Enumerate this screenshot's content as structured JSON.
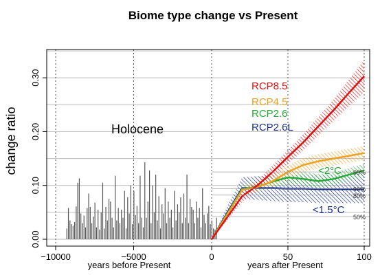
{
  "chart_data": {
    "type": "line",
    "title": "Biome type change vs Present",
    "ylabel": "change ratio",
    "xlabel_left": "years before Present",
    "xlabel_right": "years after Present",
    "holocene_label": "Holocene",
    "ylim": [
      0.0,
      0.35
    ],
    "yticks": [
      0.0,
      0.1,
      0.2,
      0.3
    ],
    "ytick_labels": [
      "0.00",
      "0.10",
      "0.20",
      "0.30"
    ],
    "holocene_xlim": [
      -10500,
      0
    ],
    "holocene_xticks": [
      -10000,
      -5000,
      0
    ],
    "holocene_xtick_labels": [
      "−10000",
      "−5000",
      "0"
    ],
    "future_xlim": [
      0,
      102
    ],
    "future_xticks": [
      50,
      100
    ],
    "future_xtick_labels": [
      "50",
      "100"
    ],
    "grid": true,
    "reference_lines": [
      {
        "label": "99%",
        "y": 0.125
      },
      {
        "label": "90%",
        "y": 0.094
      },
      {
        "label": "80%",
        "y": 0.082
      },
      {
        "label": "50%",
        "y": 0.042
      }
    ],
    "annotations": [
      {
        "text": "<2°C",
        "color": "#22aa33",
        "x": 80,
        "y": 0.125
      },
      {
        "text": "<1.5°C",
        "color": "#1a2f8a",
        "x": 82,
        "y": 0.062
      }
    ],
    "holocene_bars": {
      "x": [
        -9900,
        -9800,
        -9700,
        -9600,
        -9500,
        -9400,
        -9300,
        -9200,
        -9100,
        -9000,
        -8900,
        -8800,
        -8700,
        -8600,
        -8500,
        -8400,
        -8300,
        -8200,
        -8100,
        -8000,
        -7900,
        -7800,
        -7700,
        -7600,
        -7500,
        -7400,
        -7300,
        -7200,
        -7100,
        -7000,
        -6900,
        -6800,
        -6700,
        -6600,
        -6500,
        -6400,
        -6300,
        -6200,
        -6100,
        -6000,
        -5900,
        -5800,
        -5700,
        -5600,
        -5500,
        -5400,
        -5300,
        -5200,
        -5100,
        -5000,
        -4900,
        -4800,
        -4700,
        -4600,
        -4500,
        -4400,
        -4300,
        -4200,
        -4100,
        -4000,
        -3900,
        -3800,
        -3700,
        -3600,
        -3500,
        -3400,
        -3300,
        -3200,
        -3100,
        -3000,
        -2900,
        -2800,
        -2700,
        -2600,
        -2500,
        -2400,
        -2300,
        -2200,
        -2100,
        -2000,
        -1900,
        -1800,
        -1700,
        -1600,
        -1500,
        -1400,
        -1300,
        -1200,
        -1100,
        -1000,
        -900,
        -800,
        -700,
        -600,
        -500,
        -400,
        -300
      ],
      "values": [
        0.02,
        0.058,
        0.035,
        0.028,
        0.025,
        0.032,
        0.061,
        0.105,
        0.113,
        0.048,
        0.03,
        0.044,
        0.022,
        0.058,
        0.085,
        0.06,
        0.03,
        0.042,
        0.068,
        0.022,
        0.055,
        0.018,
        0.05,
        0.105,
        0.02,
        0.06,
        0.035,
        0.075,
        0.07,
        0.04,
        0.022,
        0.118,
        0.035,
        0.058,
        0.03,
        0.055,
        0.04,
        0.09,
        0.02,
        0.078,
        0.048,
        0.1,
        0.028,
        0.09,
        0.045,
        0.062,
        0.03,
        0.118,
        0.04,
        0.022,
        0.143,
        0.04,
        0.07,
        0.128,
        0.03,
        0.1,
        0.05,
        0.12,
        0.035,
        0.08,
        0.02,
        0.065,
        0.048,
        0.095,
        0.03,
        0.07,
        0.04,
        0.055,
        0.022,
        0.09,
        0.035,
        0.065,
        0.05,
        0.078,
        0.03,
        0.085,
        0.04,
        0.12,
        0.03,
        0.075,
        0.06,
        0.055,
        0.03,
        0.07,
        0.04,
        0.058,
        0.022,
        0.095,
        0.045,
        0.03,
        0.048,
        0.062,
        0.028,
        0.035,
        0.02,
        0.018,
        0.04
      ],
      "color": "#555555"
    },
    "series": [
      {
        "name": "RCP8.5",
        "color": "#dd1111",
        "x": [
          0,
          10,
          20,
          30,
          40,
          50,
          60,
          70,
          80,
          90,
          100
        ],
        "values": [
          0.0,
          0.04,
          0.08,
          0.1,
          0.125,
          0.153,
          0.18,
          0.21,
          0.24,
          0.272,
          0.303
        ],
        "band": [
          0.0,
          0.006,
          0.01,
          0.01,
          0.012,
          0.013,
          0.015,
          0.017,
          0.02,
          0.025,
          0.03
        ]
      },
      {
        "name": "RCP4.5",
        "color": "#f0a020",
        "x": [
          0,
          10,
          20,
          30,
          40,
          50,
          60,
          70,
          80,
          90,
          100
        ],
        "values": [
          0.0,
          0.045,
          0.092,
          0.097,
          0.108,
          0.125,
          0.138,
          0.145,
          0.15,
          0.155,
          0.16
        ],
        "band": [
          0.0,
          0.004,
          0.006,
          0.008,
          0.01,
          0.012,
          0.013,
          0.013,
          0.013,
          0.013,
          0.013
        ]
      },
      {
        "name": "RCP2.6",
        "color": "#22aa33",
        "x": [
          0,
          10,
          20,
          30,
          40,
          50,
          60,
          70,
          80,
          90,
          100
        ],
        "values": [
          0.0,
          0.046,
          0.093,
          0.098,
          0.107,
          0.115,
          0.112,
          0.108,
          0.112,
          0.12,
          0.128
        ],
        "band": [
          0.0,
          0.005,
          0.008,
          0.01,
          0.012,
          0.013,
          0.013,
          0.013,
          0.012,
          0.012,
          0.012
        ]
      },
      {
        "name": "RCP2.6L",
        "color": "#1a2f8a",
        "x": [
          0,
          10,
          20,
          30,
          40,
          50,
          60,
          70,
          80,
          90,
          100
        ],
        "values": [
          0.0,
          0.048,
          0.095,
          0.095,
          0.095,
          0.094,
          0.094,
          0.093,
          0.093,
          0.093,
          0.093
        ],
        "band": [
          0.0,
          0.012,
          0.02,
          0.022,
          0.024,
          0.025,
          0.025,
          0.026,
          0.026,
          0.026,
          0.026
        ]
      }
    ]
  }
}
